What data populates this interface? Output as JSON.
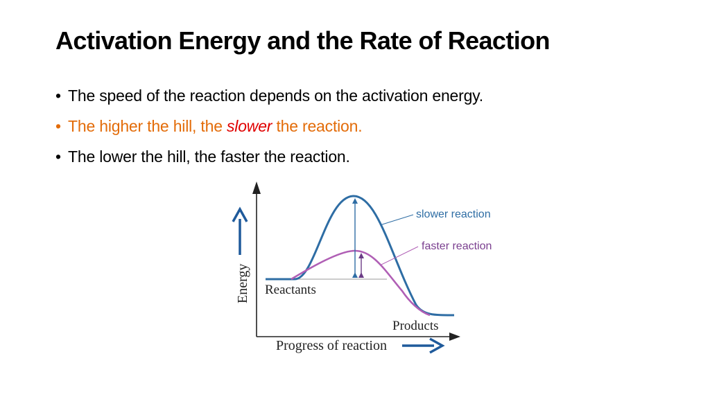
{
  "title": "Activation Energy and the Rate of Reaction",
  "bullets": [
    {
      "bullet": "•",
      "text": "The speed of the reaction depends on the activation energy."
    },
    {
      "bullet": "•",
      "pre": "The higher the hill, the ",
      "em": "slower",
      "post": " the reaction."
    },
    {
      "bullet": "•",
      "text": "The lower the hill, the faster the reaction."
    }
  ],
  "diagram": {
    "y_axis_label": "Energy",
    "x_axis_label": "Progress of reaction",
    "reactants_label": "Reactants",
    "products_label": "Products",
    "slower_label": "slower reaction",
    "faster_label": "faster reaction"
  },
  "colors": {
    "accent": "#e36c09",
    "emphasis": "#e00000",
    "slower_curve": "#2e6da4",
    "faster_curve": "#b05fb5",
    "arrow_blue": "#1f5a9b"
  }
}
